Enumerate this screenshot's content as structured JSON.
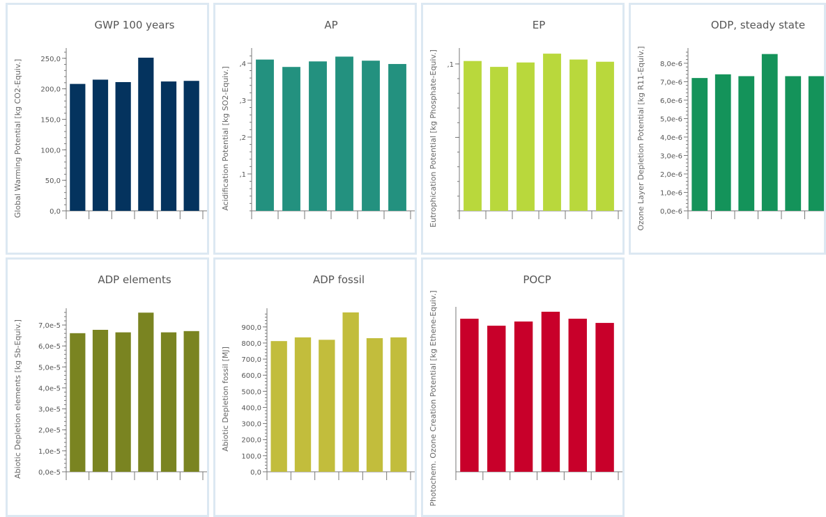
{
  "chart_data": [
    {
      "type": "bar",
      "title": "GWP 100 years",
      "ylabel": "Global Warming Potential [kg CO2-Equiv.]",
      "color": "#04335e",
      "ylim": [
        0,
        260
      ],
      "ticks": [
        0,
        50,
        100,
        150,
        200,
        250
      ],
      "tick_labels": [
        "0,0",
        "50,0",
        "100,0",
        "150,0",
        "200,0",
        "250,0"
      ],
      "values": [
        208,
        215,
        211,
        251,
        212,
        213
      ]
    },
    {
      "type": "bar",
      "title": "AP",
      "ylabel": "Acidification Potential [kg SO2-Equiv.]",
      "color": "#23917f",
      "ylim": [
        0,
        0.43
      ],
      "ticks": [
        0.1,
        0.2,
        0.3,
        0.4
      ],
      "tick_labels": [
        ",1",
        ",2",
        ",3",
        ",4"
      ],
      "values": [
        0.41,
        0.39,
        0.405,
        0.418,
        0.407,
        0.398
      ]
    },
    {
      "type": "bar",
      "title": "EP",
      "ylabel": "Eutrophication Potential [kg Phosphate-Equiv.]",
      "color": "#b9d83c",
      "ylim": [
        0,
        0.108
      ],
      "ticks": [
        0.05,
        0.1
      ],
      "tick_labels": [
        "",
        ",1"
      ],
      "values": [
        0.102,
        0.098,
        0.101,
        0.107,
        0.103,
        0.1015
      ]
    },
    {
      "type": "bar",
      "title": "ODP, steady state",
      "ylabel": "Ozone Layer Depletion Potential [kg R11-Equiv.]",
      "color": "#14935a",
      "ylim": [
        0,
        8.6e-06
      ],
      "ticks": [
        0,
        1e-06,
        2e-06,
        3e-06,
        4e-06,
        5e-06,
        6e-06,
        7e-06,
        8e-06
      ],
      "tick_labels": [
        "0,0e-6",
        "1,0e-6",
        "2,0e-6",
        "3,0e-6",
        "4,0e-6",
        "5,0e-6",
        "6,0e-6",
        "7,0e-6",
        "8,0e-6"
      ],
      "values": [
        7.2e-06,
        7.4e-06,
        7.3e-06,
        8.5e-06,
        7.3e-06,
        7.3e-06
      ]
    },
    {
      "type": "bar",
      "title": "ADP elements",
      "ylabel": "Abiotic Depletion elements [kg Sb-Equiv.]",
      "color": "#7a8421",
      "ylim": [
        0,
        7.6e-05
      ],
      "ticks": [
        0,
        1e-05,
        2e-05,
        3e-05,
        4e-05,
        5e-05,
        6e-05,
        7e-05
      ],
      "tick_labels": [
        "0,0e-5",
        "1,0e-5",
        "2,0e-5",
        "3,0e-5",
        "4,0e-5",
        "5,0e-5",
        "6,0e-5",
        "7,0e-5"
      ],
      "values": [
        6.61e-05,
        6.77e-05,
        6.65e-05,
        7.59e-05,
        6.65e-05,
        6.71e-05
      ]
    },
    {
      "type": "bar",
      "title": "ADP fossil",
      "ylabel": "Abiotic Depletion fossil [MJ]",
      "color": "#c2bd3c",
      "ylim": [
        0,
        990
      ],
      "ticks": [
        0,
        100,
        200,
        300,
        400,
        500,
        600,
        700,
        800,
        900
      ],
      "tick_labels": [
        "0,0",
        "100,0",
        "200,0",
        "300,0",
        "400,0",
        "500,0",
        "600,0",
        "700,0",
        "800,0",
        "900,0"
      ],
      "values": [
        812,
        835,
        820,
        990,
        830,
        835
      ]
    },
    {
      "type": "bar",
      "title": "POCP",
      "ylabel": "Photochem. Ozone Creation Potential [kg Ethene-Equiv.]",
      "color": "#c8002a",
      "ylim": [
        0,
        0.23
      ],
      "ticks": [],
      "tick_labels": [],
      "values": [
        0.219,
        0.209,
        0.215,
        0.229,
        0.219,
        0.213
      ]
    }
  ]
}
